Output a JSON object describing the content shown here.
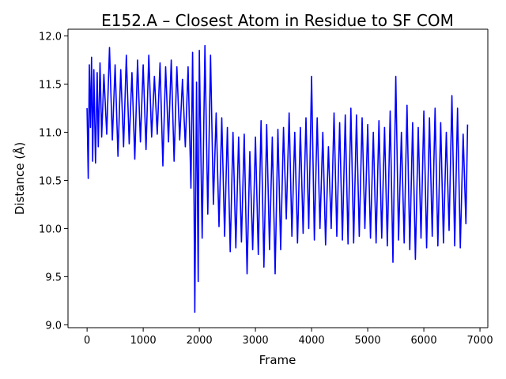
{
  "chart_data": {
    "type": "line",
    "title": "E152.A – Closest Atom in Residue to SF COM",
    "xlabel": "Frame",
    "ylabel": "Distance (Å)",
    "xlim": [
      -340,
      7140
    ],
    "ylim": [
      8.97,
      12.07
    ],
    "xticks": [
      0,
      1000,
      2000,
      3000,
      4000,
      5000,
      6000,
      7000
    ],
    "yticks": [
      9.0,
      9.5,
      10.0,
      10.5,
      11.0,
      11.5,
      12.0
    ],
    "ytick_labels": [
      "9.0",
      "9.5",
      "10.0",
      "10.5",
      "11.0",
      "11.5",
      "12.0"
    ],
    "grid": false,
    "legend": "none",
    "series": [
      {
        "color": "#0000ff",
        "x": [
          0,
          20,
          40,
          60,
          80,
          100,
          120,
          150,
          180,
          200,
          230,
          260,
          300,
          350,
          400,
          450,
          500,
          550,
          600,
          650,
          700,
          750,
          800,
          850,
          900,
          950,
          1000,
          1050,
          1100,
          1150,
          1200,
          1250,
          1300,
          1350,
          1400,
          1450,
          1500,
          1550,
          1600,
          1650,
          1700,
          1750,
          1800,
          1850,
          1880,
          1900,
          1920,
          1950,
          1980,
          2000,
          2050,
          2100,
          2150,
          2200,
          2250,
          2300,
          2350,
          2400,
          2450,
          2500,
          2550,
          2600,
          2650,
          2700,
          2750,
          2800,
          2850,
          2900,
          2950,
          3000,
          3050,
          3100,
          3150,
          3200,
          3250,
          3300,
          3350,
          3400,
          3450,
          3500,
          3550,
          3600,
          3650,
          3700,
          3750,
          3800,
          3850,
          3900,
          3950,
          4000,
          4050,
          4100,
          4150,
          4200,
          4250,
          4300,
          4350,
          4400,
          4450,
          4500,
          4550,
          4600,
          4650,
          4700,
          4750,
          4800,
          4850,
          4900,
          4950,
          5000,
          5050,
          5100,
          5150,
          5200,
          5250,
          5300,
          5350,
          5400,
          5450,
          5500,
          5550,
          5600,
          5650,
          5700,
          5750,
          5800,
          5850,
          5900,
          5950,
          6000,
          6050,
          6100,
          6150,
          6200,
          6250,
          6300,
          6350,
          6400,
          6450,
          6500,
          6550,
          6600,
          6650,
          6700,
          6750,
          6780
        ],
        "y": [
          11.25,
          10.52,
          11.7,
          11.05,
          11.78,
          10.7,
          11.65,
          10.68,
          11.62,
          10.85,
          11.72,
          10.95,
          11.6,
          10.98,
          11.88,
          10.92,
          11.7,
          10.75,
          11.65,
          10.85,
          11.8,
          10.88,
          11.62,
          10.72,
          11.75,
          10.9,
          11.7,
          10.82,
          11.8,
          10.95,
          11.58,
          10.98,
          11.72,
          10.65,
          11.68,
          10.9,
          11.75,
          10.7,
          11.68,
          10.92,
          11.55,
          10.85,
          11.68,
          10.42,
          11.83,
          10.8,
          9.13,
          11.52,
          9.45,
          11.85,
          9.9,
          11.9,
          10.15,
          11.8,
          10.25,
          11.2,
          10.02,
          11.15,
          9.92,
          11.05,
          9.76,
          11.0,
          9.8,
          10.95,
          9.86,
          10.98,
          9.53,
          10.8,
          9.78,
          10.95,
          9.73,
          11.12,
          9.6,
          11.08,
          9.78,
          10.95,
          9.53,
          11.03,
          9.78,
          11.05,
          10.1,
          11.2,
          9.92,
          11.0,
          9.85,
          11.05,
          9.95,
          11.15,
          10.0,
          11.58,
          9.88,
          11.15,
          10.0,
          11.0,
          9.83,
          10.85,
          10.0,
          11.2,
          9.92,
          11.1,
          9.88,
          11.18,
          9.84,
          11.25,
          9.85,
          11.18,
          9.92,
          11.15,
          10.0,
          11.08,
          9.9,
          11.0,
          9.85,
          11.12,
          9.9,
          11.05,
          9.82,
          11.22,
          9.65,
          11.58,
          9.88,
          11.0,
          9.85,
          11.28,
          9.78,
          11.1,
          9.68,
          11.05,
          9.9,
          11.22,
          9.8,
          11.15,
          9.92,
          11.25,
          9.82,
          11.1,
          9.85,
          11.0,
          9.98,
          11.38,
          9.82,
          11.25,
          9.8,
          10.98,
          10.05,
          11.08
        ]
      }
    ]
  }
}
